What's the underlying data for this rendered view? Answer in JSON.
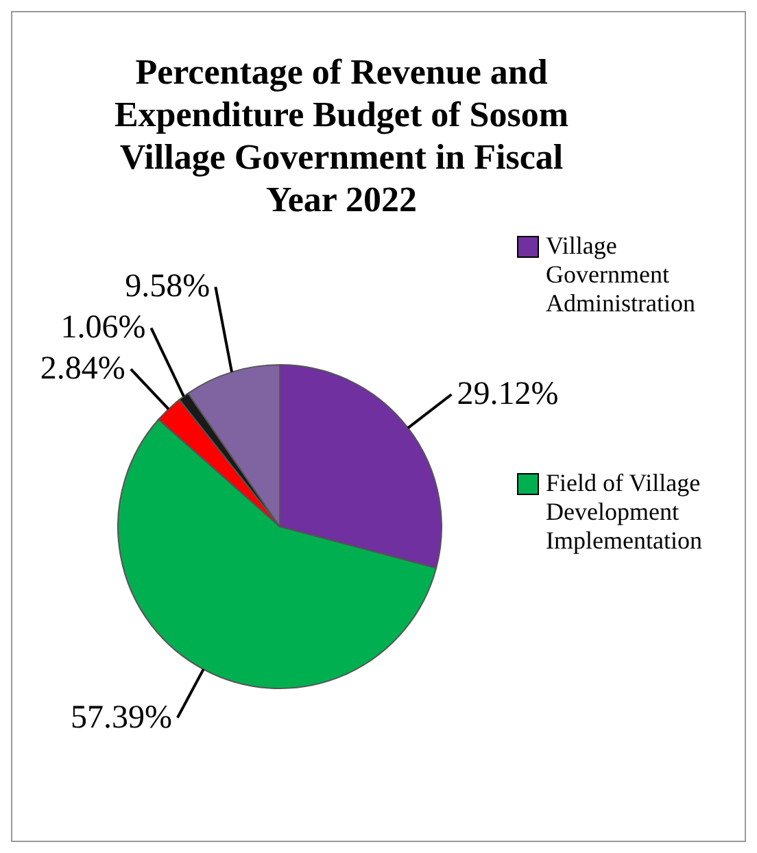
{
  "chart_data": {
    "type": "pie",
    "title": "Percentage of Revenue and Expenditure Budget of Sosom Village Government in Fiscal Year 2022",
    "categories": [
      "Village Government Administration",
      "Field of Village Development Implementation",
      null,
      null,
      null
    ],
    "values": [
      29.12,
      57.39,
      2.84,
      1.06,
      9.58
    ],
    "colors": [
      "#7030a0",
      "#00b050",
      "#ff0000",
      "#1a1a1a",
      "#8064a2"
    ],
    "value_labels": [
      "29.12%",
      "57.39%",
      "2.84%",
      "1.06%",
      "9.58%"
    ],
    "legend": "right"
  }
}
